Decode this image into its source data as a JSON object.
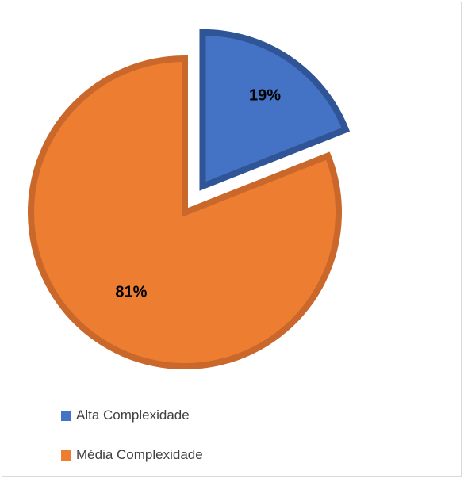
{
  "chart_data": {
    "type": "pie",
    "categories": [
      "Alta Complexidade",
      "Média Complexidade"
    ],
    "values": [
      19,
      81
    ],
    "data_labels": [
      "19%",
      "81%"
    ],
    "exploded": "Alta Complexidade",
    "legend_position": "bottom-left",
    "title": "",
    "colors": {
      "Alta Complexidade": {
        "fill": "#4472C4",
        "stroke": "#2F5597"
      },
      "Média Complexidade": {
        "fill": "#ED7D31",
        "stroke": "#C9682A"
      }
    }
  },
  "legend": {
    "items": [
      {
        "label": "Alta Complexidade",
        "color": "#4472C4"
      },
      {
        "label": "Média Complexidade",
        "color": "#ED7D31"
      }
    ]
  }
}
